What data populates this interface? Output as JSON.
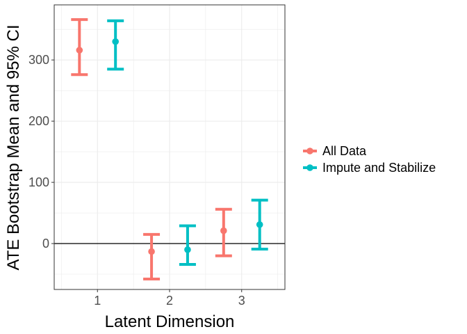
{
  "chart_data": {
    "type": "errorbar",
    "title": "",
    "xlabel": "Latent Dimension",
    "ylabel": "ATE Bootstrap Mean and 95% CI",
    "categories": [
      "1",
      "2",
      "3"
    ],
    "ylim": [
      -75,
      390
    ],
    "yticks": [
      0,
      100,
      200,
      300
    ],
    "reference_line_y": 0,
    "grid": true,
    "legend_position": "right",
    "series": [
      {
        "name": "All Data",
        "color": "#F8766D",
        "points": [
          {
            "x": "1",
            "mean": 316,
            "lower": 276,
            "upper": 366
          },
          {
            "x": "2",
            "mean": -13,
            "lower": -58,
            "upper": 15
          },
          {
            "x": "3",
            "mean": 21,
            "lower": -20,
            "upper": 56
          }
        ]
      },
      {
        "name": "Impute and Stabilize",
        "color": "#00BFC4",
        "points": [
          {
            "x": "1",
            "mean": 330,
            "lower": 285,
            "upper": 364
          },
          {
            "x": "2",
            "mean": -10,
            "lower": -34,
            "upper": 29
          },
          {
            "x": "3",
            "mean": 31,
            "lower": -9,
            "upper": 71
          }
        ]
      }
    ]
  }
}
